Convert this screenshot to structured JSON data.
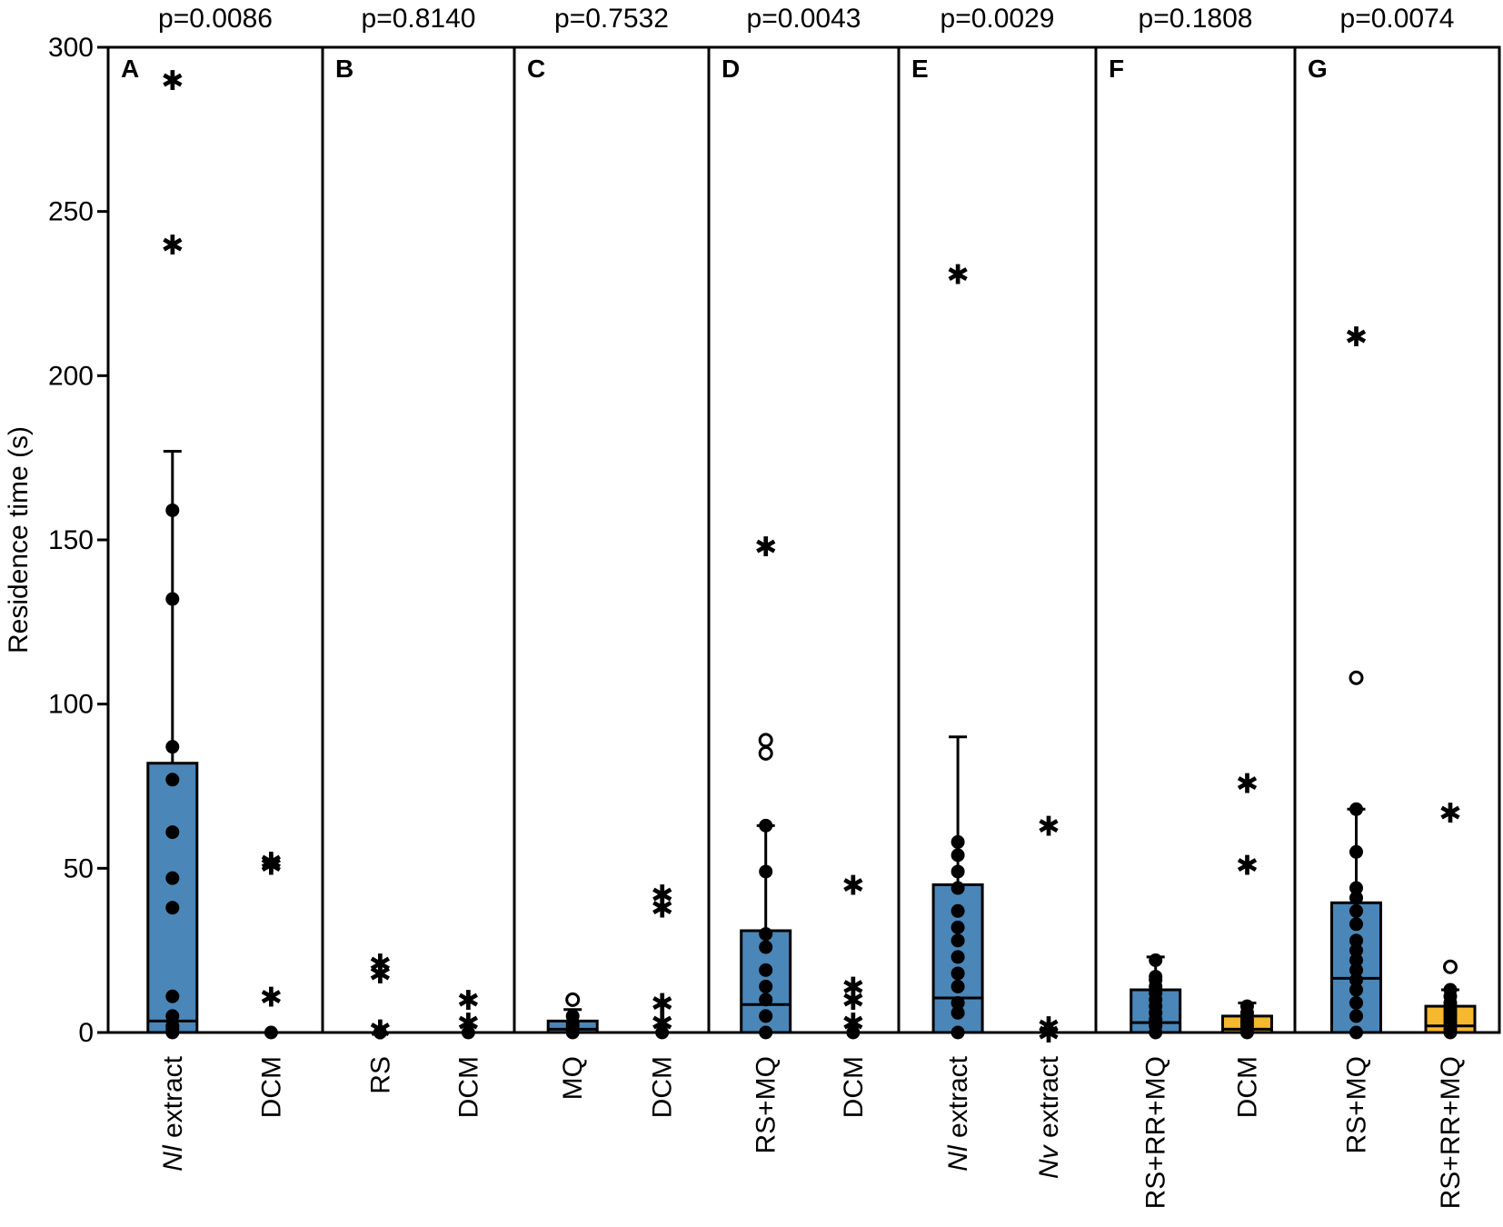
{
  "chart_data": {
    "type": "bar",
    "ylabel": "Residence time (s)",
    "ylim": [
      0,
      300
    ],
    "yticks": [
      0,
      50,
      100,
      150,
      200,
      250,
      300
    ],
    "colors": {
      "blue": "#4a86b8",
      "yellow": "#f5b82e"
    },
    "panels": [
      {
        "letter": "A",
        "pvalue": "p=0.0086",
        "groups": [
          {
            "label": "Nl extract",
            "italic": "Nl",
            "rest": " extract",
            "color": "blue",
            "bar": 82,
            "median": 3.5,
            "whisker_top": 177,
            "points": [
              0,
              1,
              2,
              5,
              11,
              38,
              47,
              61,
              77,
              87,
              132,
              159
            ],
            "open_points": [],
            "stars": [
              290,
              240
            ]
          },
          {
            "label": "DCM",
            "color": "none",
            "points": [
              0
            ],
            "open_points": [],
            "stars": [
              52,
              51,
              11
            ]
          }
        ]
      },
      {
        "letter": "B",
        "pvalue": "p=0.8140",
        "groups": [
          {
            "label": "RS",
            "color": "none",
            "points": [
              0
            ],
            "open_points": [],
            "stars": [
              21,
              18,
              1
            ]
          },
          {
            "label": "DCM",
            "color": "none",
            "points": [
              0
            ],
            "open_points": [],
            "stars": [
              10,
              3
            ]
          }
        ]
      },
      {
        "letter": "C",
        "pvalue": "p=0.7532",
        "groups": [
          {
            "label": "MQ",
            "color": "blue",
            "bar": 3.5,
            "median": 1,
            "whisker_top": 7,
            "points": [
              0,
              1,
              2,
              3,
              5
            ],
            "open_points": [
              10
            ],
            "stars": []
          },
          {
            "label": "DCM",
            "color": "none",
            "points": [
              0
            ],
            "open_points": [],
            "stars": [
              42,
              38,
              9,
              3
            ]
          }
        ]
      },
      {
        "letter": "D",
        "pvalue": "p=0.0043",
        "groups": [
          {
            "label": "RS+MQ",
            "color": "blue",
            "bar": 31,
            "median": 8.5,
            "whisker_top": 63,
            "points": [
              0,
              5,
              10,
              14,
              19,
              26,
              30,
              49,
              63
            ],
            "open_points": [
              89,
              85
            ],
            "stars": [
              148
            ]
          },
          {
            "label": "DCM",
            "color": "none",
            "points": [
              0
            ],
            "open_points": [],
            "stars": [
              45,
              14,
              10,
              3
            ]
          }
        ]
      },
      {
        "letter": "E",
        "pvalue": "p=0.0029",
        "groups": [
          {
            "label": "Nl extract",
            "italic": "Nl",
            "rest": " extract",
            "color": "blue",
            "bar": 45,
            "median": 10.5,
            "whisker_top": 90,
            "points": [
              0,
              6,
              9,
              14,
              18,
              23,
              28,
              32,
              37,
              44,
              49,
              54,
              58
            ],
            "open_points": [],
            "stars": [
              231
            ]
          },
          {
            "label": "Nv extract",
            "italic": "Nv",
            "rest": " extract",
            "color": "none",
            "points": [],
            "open_points": [],
            "stars": [
              63,
              2,
              0
            ]
          }
        ]
      },
      {
        "letter": "F",
        "pvalue": "p=0.1808",
        "groups": [
          {
            "label": "RS+RR+MQ",
            "color": "blue",
            "bar": 13,
            "median": 3,
            "whisker_top": 23,
            "points": [
              0,
              2,
              4,
              6,
              8,
              10,
              12,
              14,
              16,
              17,
              22
            ],
            "open_points": [],
            "stars": []
          },
          {
            "label": "DCM",
            "color": "yellow",
            "bar": 5,
            "median": 1,
            "whisker_top": 9,
            "points": [
              0,
              1,
              2,
              3,
              4,
              6,
              8
            ],
            "open_points": [],
            "stars": [
              76,
              51
            ]
          }
        ]
      },
      {
        "letter": "G",
        "pvalue": "p=0.0074",
        "groups": [
          {
            "label": "RS+MQ",
            "color": "blue",
            "bar": 39.5,
            "median": 16.5,
            "whisker_top": 68,
            "points": [
              0,
              5,
              9,
              13,
              16,
              19,
              22,
              25,
              28,
              33,
              37,
              41,
              44,
              55,
              68
            ],
            "open_points": [
              108
            ],
            "stars": [
              212
            ]
          },
          {
            "label": "RS+RR+MQ",
            "color": "yellow",
            "bar": 8,
            "median": 2,
            "whisker_top": 13,
            "points": [
              0,
              1,
              2,
              3,
              4,
              5,
              6,
              7,
              9,
              11,
              13
            ],
            "open_points": [
              20
            ],
            "stars": [
              67
            ]
          }
        ]
      }
    ]
  }
}
